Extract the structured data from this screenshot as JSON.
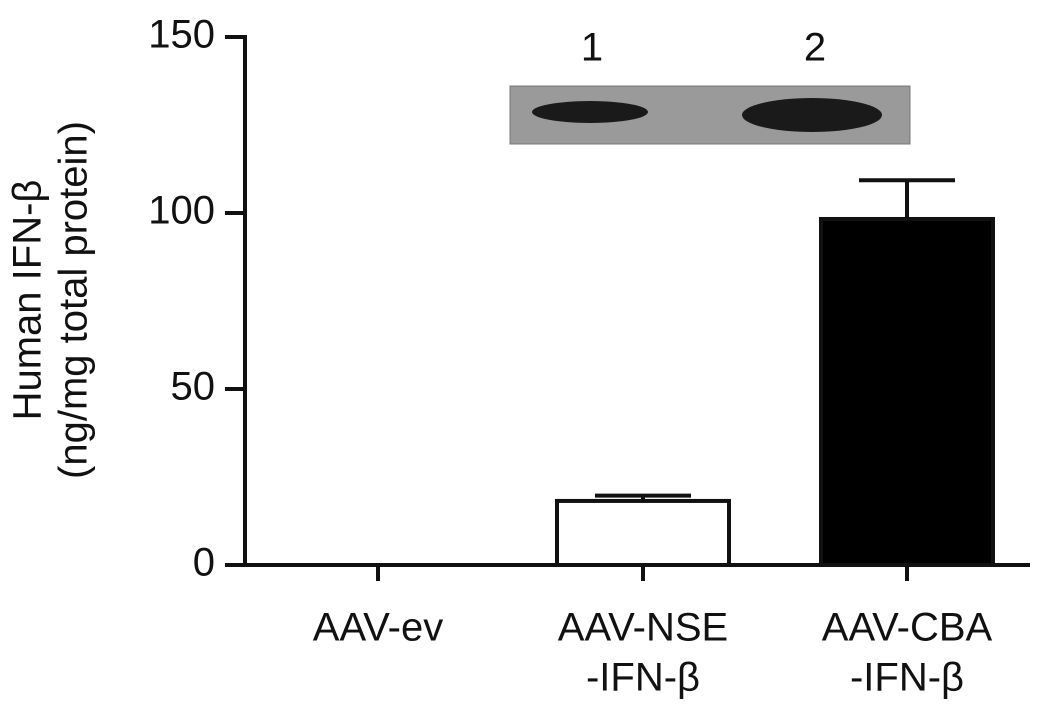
{
  "chart_data": {
    "type": "bar",
    "y_label": [
      "Human IFN-β",
      "(ng/mg total protein)"
    ],
    "categories": [
      [
        "AAV-ev"
      ],
      [
        "AAV-NSE",
        "-IFN-β"
      ],
      [
        "AAV-CBA",
        "-IFN-β"
      ]
    ],
    "values": [
      0,
      18.2,
      98.3
    ],
    "errors": [
      null,
      1.5,
      11
    ],
    "colors": [
      "#ffffff",
      "#ffffff",
      "#000000"
    ],
    "ylim": [
      0,
      150
    ],
    "yticks": [
      0,
      50,
      100,
      150
    ],
    "annotations": [
      "1",
      "2"
    ]
  }
}
